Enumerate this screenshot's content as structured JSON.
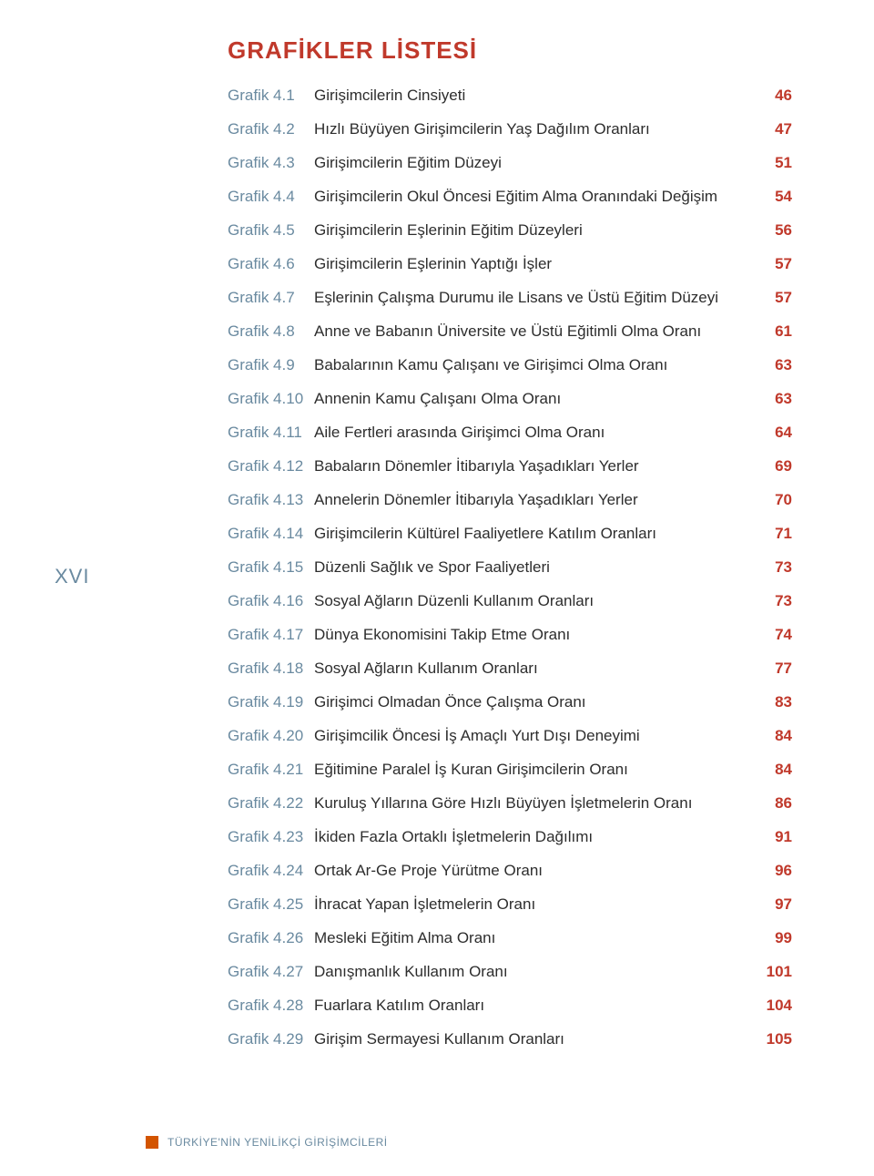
{
  "heading": "GRAFİKLER LİSTESİ",
  "side_roman": "XVI",
  "footer": "TÜRKİYE'NİN YENİLİKÇİ GİRİŞİMCİLERİ",
  "colors": {
    "heading": "#c0392b",
    "label": "#6a8aa0",
    "title": "#2d2d2d",
    "page_num": "#c0392b",
    "footer_square": "#d35400",
    "background": "#ffffff"
  },
  "typography": {
    "heading_fontsize": 26,
    "row_fontsize": 17,
    "footer_fontsize": 12
  },
  "entries": [
    {
      "label": "Grafik 4.1",
      "title": "Girişimcilerin Cinsiyeti",
      "page": "46"
    },
    {
      "label": "Grafik 4.2",
      "title": "Hızlı Büyüyen Girişimcilerin Yaş Dağılım Oranları",
      "page": "47"
    },
    {
      "label": "Grafik 4.3",
      "title": "Girişimcilerin Eğitim Düzeyi",
      "page": "51"
    },
    {
      "label": "Grafik 4.4",
      "title": "Girişimcilerin Okul Öncesi Eğitim Alma Oranındaki Değişim",
      "page": "54"
    },
    {
      "label": "Grafik 4.5",
      "title": "Girişimcilerin Eşlerinin Eğitim Düzeyleri",
      "page": "56"
    },
    {
      "label": "Grafik 4.6",
      "title": "Girişimcilerin Eşlerinin Yaptığı İşler",
      "page": "57"
    },
    {
      "label": "Grafik 4.7",
      "title": "Eşlerinin Çalışma Durumu ile Lisans ve Üstü Eğitim Düzeyi",
      "page": "57"
    },
    {
      "label": "Grafik 4.8",
      "title": "Anne ve Babanın Üniversite ve Üstü Eğitimli Olma Oranı",
      "page": "61"
    },
    {
      "label": "Grafik 4.9",
      "title": "Babalarının Kamu Çalışanı ve Girişimci Olma Oranı",
      "page": "63"
    },
    {
      "label": "Grafik 4.10",
      "title": "Annenin Kamu Çalışanı Olma Oranı",
      "page": "63"
    },
    {
      "label": "Grafik 4.11",
      "title": "Aile Fertleri arasında Girişimci Olma Oranı",
      "page": "64"
    },
    {
      "label": "Grafik 4.12",
      "title": "Babaların Dönemler İtibarıyla Yaşadıkları Yerler",
      "page": "69"
    },
    {
      "label": "Grafik 4.13",
      "title": "Annelerin Dönemler İtibarıyla Yaşadıkları Yerler",
      "page": "70"
    },
    {
      "label": "Grafik 4.14",
      "title": "Girişimcilerin Kültürel Faaliyetlere Katılım Oranları",
      "page": "71"
    },
    {
      "label": "Grafik 4.15",
      "title": "Düzenli Sağlık ve Spor Faaliyetleri",
      "page": "73"
    },
    {
      "label": "Grafik 4.16",
      "title": "Sosyal Ağların Düzenli Kullanım Oranları",
      "page": "73"
    },
    {
      "label": "Grafik 4.17",
      "title": "Dünya Ekonomisini Takip Etme Oranı",
      "page": "74"
    },
    {
      "label": "Grafik 4.18",
      "title": "Sosyal Ağların Kullanım Oranları",
      "page": "77"
    },
    {
      "label": "Grafik 4.19",
      "title": "Girişimci Olmadan Önce Çalışma Oranı",
      "page": "83"
    },
    {
      "label": "Grafik 4.20",
      "title": "Girişimcilik Öncesi İş Amaçlı Yurt Dışı Deneyimi",
      "page": "84"
    },
    {
      "label": "Grafik 4.21",
      "title": "Eğitimine Paralel İş Kuran Girişimcilerin Oranı",
      "page": "84"
    },
    {
      "label": "Grafik 4.22",
      "title": "Kuruluş Yıllarına Göre Hızlı Büyüyen İşletmelerin Oranı",
      "page": "86"
    },
    {
      "label": "Grafik 4.23",
      "title": "İkiden Fazla Ortaklı İşletmelerin Dağılımı",
      "page": "91"
    },
    {
      "label": "Grafik 4.24",
      "title": "Ortak Ar-Ge Proje Yürütme Oranı",
      "page": "96"
    },
    {
      "label": "Grafik 4.25",
      "title": "İhracat Yapan İşletmelerin Oranı",
      "page": "97"
    },
    {
      "label": "Grafik 4.26",
      "title": "Mesleki Eğitim Alma Oranı",
      "page": "99"
    },
    {
      "label": "Grafik 4.27",
      "title": "Danışmanlık Kullanım Oranı",
      "page": "101"
    },
    {
      "label": "Grafik 4.28",
      "title": "Fuarlara Katılım Oranları",
      "page": "104"
    },
    {
      "label": "Grafik 4.29",
      "title": "Girişim Sermayesi Kullanım Oranları",
      "page": "105"
    }
  ]
}
